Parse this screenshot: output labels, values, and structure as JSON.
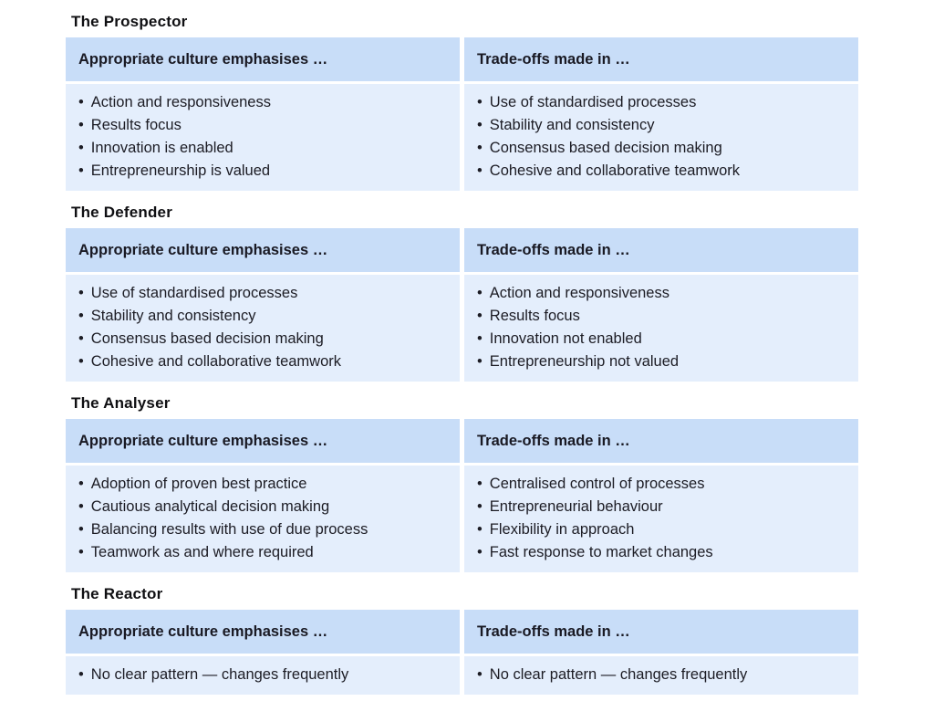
{
  "colors": {
    "header_bg": "#c8ddf8",
    "body_bg": "#e4eefc",
    "text": "#1c1c24",
    "title": "#0f0f12",
    "page_bg": "#ffffff"
  },
  "column_headers": {
    "left": "Appropriate culture emphasises …",
    "right": "Trade-offs made in …"
  },
  "sections": [
    {
      "title": "The Prospector",
      "emphasises": [
        "Action and responsiveness",
        "Results focus",
        "Innovation is enabled",
        "Entrepreneurship is valued"
      ],
      "tradeoffs": [
        "Use of standardised processes",
        "Stability and consistency",
        "Consensus based decision making",
        "Cohesive and collaborative teamwork"
      ]
    },
    {
      "title": "The Defender",
      "emphasises": [
        "Use of standardised processes",
        "Stability and consistency",
        "Consensus based decision making",
        "Cohesive and collaborative teamwork"
      ],
      "tradeoffs": [
        "Action and responsiveness",
        "Results focus",
        "Innovation not enabled",
        "Entrepreneurship not valued"
      ]
    },
    {
      "title": "The Analyser",
      "emphasises": [
        "Adoption of proven best practice",
        "Cautious analytical decision making",
        "Balancing results with use of due process",
        "Teamwork as and where required"
      ],
      "tradeoffs": [
        "Centralised control of processes",
        "Entrepreneurial behaviour",
        "Flexibility in approach",
        "Fast response to market changes"
      ]
    },
    {
      "title": "The Reactor",
      "emphasises": [
        "No clear pattern — changes frequently"
      ],
      "tradeoffs": [
        "No clear pattern — changes frequently"
      ]
    }
  ]
}
